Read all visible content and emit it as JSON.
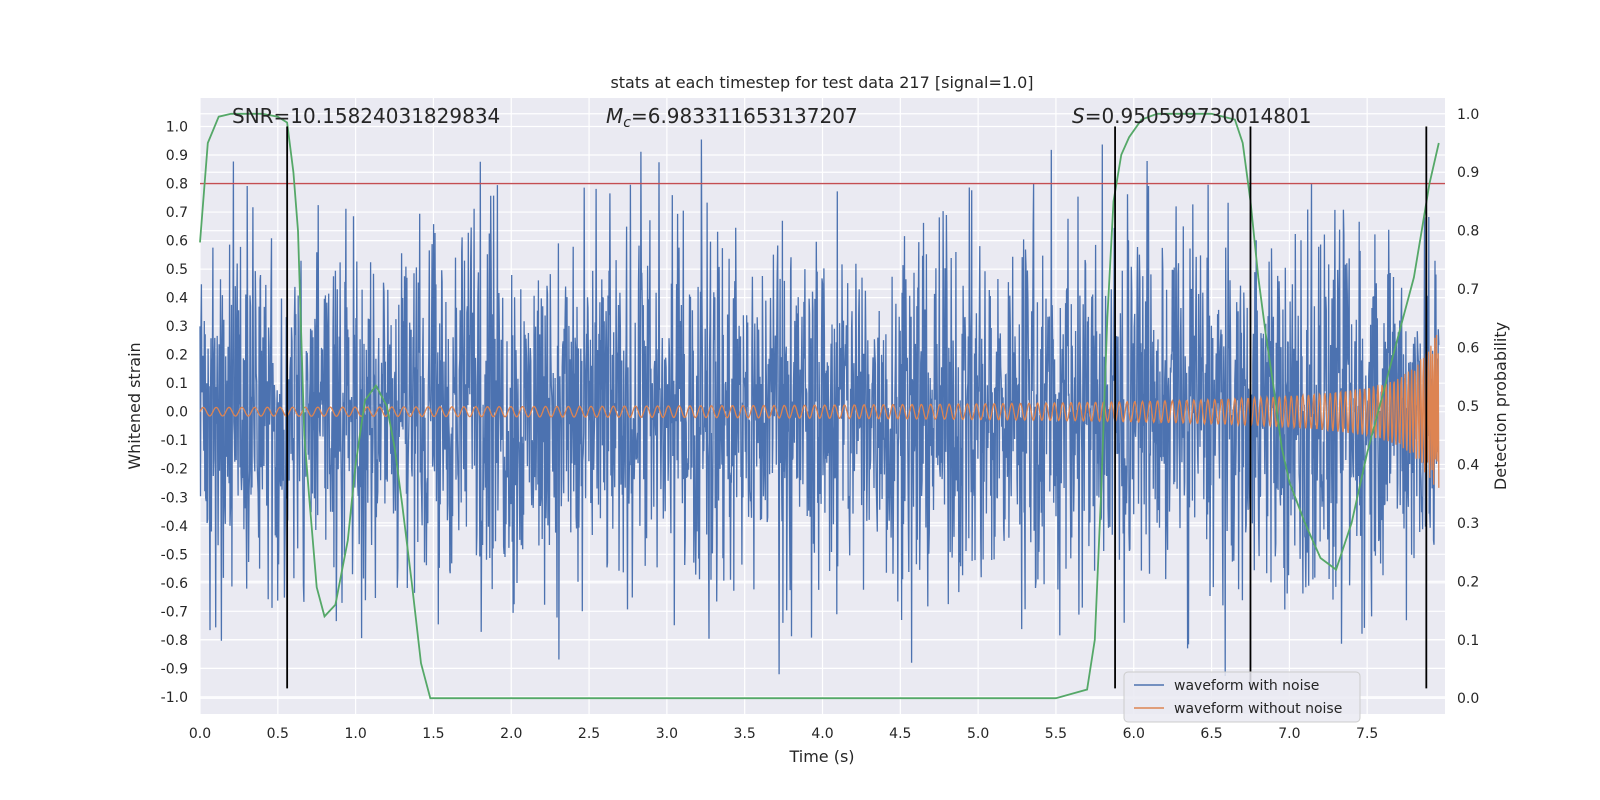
{
  "chart_data": {
    "type": "line",
    "title": "stats at each timestep for test data 217 [signal=1.0]",
    "xlabel": "Time (s)",
    "ylabel": "Whitened strain",
    "y2label": "Detection probability",
    "xlim": [
      0.0,
      8.0
    ],
    "ylim": [
      -1.06,
      1.1
    ],
    "y2lim": [
      -0.027,
      1.027
    ],
    "x_ticks": [
      "0.0",
      "0.5",
      "1.0",
      "1.5",
      "2.0",
      "2.5",
      "3.0",
      "3.5",
      "4.0",
      "4.5",
      "5.0",
      "5.5",
      "6.0",
      "6.5",
      "7.0",
      "7.5"
    ],
    "y_ticks": [
      "1.0",
      "0.9",
      "0.8",
      "0.7",
      "0.6",
      "0.5",
      "0.4",
      "0.3",
      "0.2",
      "0.1",
      "0.0",
      "-0.1",
      "-0.2",
      "-0.3",
      "-0.4",
      "-0.5",
      "-0.6",
      "-0.7",
      "-0.8",
      "-0.9",
      "-1.0"
    ],
    "y2_ticks": [
      "1.0",
      "0.9",
      "0.8",
      "0.7",
      "0.6",
      "0.5",
      "0.4",
      "0.3",
      "0.2",
      "0.1",
      "0.0"
    ],
    "annotations": {
      "snr": "SNR=10.15824031829834",
      "mc_symbol": "M",
      "mc_sub": "c",
      "mc_value": "=6.983311653137207",
      "s_symbol": "S",
      "s_value": "=0.950599730014801"
    },
    "threshold_y": 0.8,
    "vertical_lines_x": [
      0.56,
      5.88,
      6.75,
      7.88
    ],
    "noise_band": {
      "x_start": 0.0,
      "x_end": 7.96,
      "typical_amplitude": 0.38,
      "spike_max": 1.0,
      "spike_min": -0.95
    },
    "chirp": {
      "x_start": 0.0,
      "x_end": 7.96,
      "start_amplitude": 0.015,
      "peak_amplitude": 0.27
    },
    "detection_probability": {
      "x": [
        0.0,
        0.05,
        0.12,
        0.2,
        0.3,
        0.4,
        0.5,
        0.56,
        0.6,
        0.63,
        0.67,
        0.7,
        0.75,
        0.8,
        0.87,
        0.95,
        1.0,
        1.06,
        1.13,
        1.2,
        1.25,
        1.3,
        1.36,
        1.42,
        1.48,
        1.55,
        2.0,
        2.5,
        3.0,
        3.5,
        4.0,
        4.5,
        5.0,
        5.5,
        5.7,
        5.75,
        5.79,
        5.83,
        5.87,
        5.92,
        5.97,
        6.05,
        6.15,
        6.3,
        6.5,
        6.65,
        6.7,
        6.75,
        6.8,
        6.85,
        6.9,
        6.95,
        7.0,
        7.1,
        7.2,
        7.3,
        7.4,
        7.5,
        7.6,
        7.7,
        7.8,
        7.85,
        7.9,
        7.96
      ],
      "y": [
        0.78,
        0.95,
        0.995,
        1.0,
        1.0,
        1.0,
        0.995,
        0.985,
        0.9,
        0.8,
        0.45,
        0.35,
        0.19,
        0.14,
        0.16,
        0.27,
        0.4,
        0.51,
        0.535,
        0.5,
        0.43,
        0.33,
        0.2,
        0.06,
        0.0,
        0.0,
        0.0,
        0.0,
        0.0,
        0.0,
        0.0,
        0.0,
        0.0,
        0.0,
        0.015,
        0.1,
        0.35,
        0.65,
        0.85,
        0.93,
        0.96,
        0.99,
        1.0,
        1.0,
        1.0,
        0.99,
        0.95,
        0.85,
        0.72,
        0.62,
        0.53,
        0.43,
        0.37,
        0.3,
        0.24,
        0.22,
        0.3,
        0.42,
        0.52,
        0.62,
        0.72,
        0.8,
        0.88,
        0.95
      ]
    },
    "legend": {
      "placement": "lower-right",
      "entries": [
        {
          "label": "waveform with noise",
          "color": "#4c72b0"
        },
        {
          "label": "waveform without noise",
          "color": "#dd8452"
        }
      ]
    }
  },
  "colors": {
    "noise": "#4c72b0",
    "clean": "#dd8452",
    "prob": "#55a868",
    "threshold": "#c44e52",
    "vline": "#000000",
    "plot_bg": "#eaeaf2",
    "grid": "#ffffff"
  }
}
